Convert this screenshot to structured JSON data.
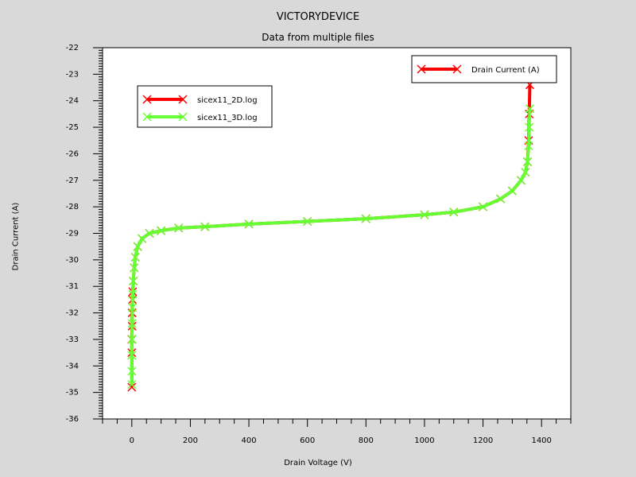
{
  "window": {
    "title": "VICTORYDEVICE",
    "subtitle": "Data from multiple files"
  },
  "colors": {
    "background": "#d9d9d9",
    "plot_area": "#ffffff",
    "series_2d": "#ff0000",
    "series_3d": "#66ff33",
    "axis": "#000000"
  },
  "chart_data": {
    "type": "line",
    "title": "VICTORYDEVICE",
    "subtitle": "Data from multiple files",
    "xlabel": "Drain Voltage (V)",
    "ylabel": "Drain Current (A)",
    "xlim": [
      -100,
      1500
    ],
    "ylim": [
      -36,
      -22
    ],
    "x_ticks": [
      0,
      200,
      400,
      600,
      800,
      1000,
      1200,
      1400
    ],
    "y_ticks": [
      -22,
      -23,
      -24,
      -25,
      -26,
      -27,
      -28,
      -29,
      -30,
      -31,
      -32,
      -33,
      -34,
      -35,
      -36
    ],
    "grid": false,
    "legends": [
      {
        "placement": "upper-left",
        "entries": [
          {
            "label": "sicex11_2D.log",
            "color": "#ff0000"
          },
          {
            "label": "sicex11_3D.log",
            "color": "#66ff33"
          }
        ]
      },
      {
        "placement": "top-right",
        "entries": [
          {
            "label": "Drain Current (A)",
            "color": "#ff0000"
          }
        ]
      }
    ],
    "series": [
      {
        "name": "sicex11_2D.log",
        "color": "#ff0000",
        "x": [
          0,
          0,
          0,
          1,
          1,
          2,
          3,
          5,
          8,
          12,
          20,
          35,
          60,
          100,
          160,
          250,
          400,
          600,
          800,
          1000,
          1100,
          1200,
          1260,
          1300,
          1330,
          1345,
          1352,
          1356,
          1358,
          1360
        ],
        "y": [
          -34.8,
          -33.5,
          -33.0,
          -32.5,
          -32.0,
          -31.5,
          -31.2,
          -30.8,
          -30.3,
          -29.9,
          -29.5,
          -29.2,
          -29.0,
          -28.9,
          -28.8,
          -28.75,
          -28.65,
          -28.55,
          -28.45,
          -28.3,
          -28.2,
          -28.0,
          -27.7,
          -27.4,
          -27.0,
          -26.7,
          -26.3,
          -25.5,
          -24.5,
          -23.4
        ]
      },
      {
        "name": "sicex11_3D.log",
        "color": "#66ff33",
        "x": [
          0,
          0,
          0,
          1,
          1,
          2,
          3,
          5,
          8,
          12,
          20,
          35,
          60,
          100,
          160,
          250,
          400,
          600,
          800,
          1000,
          1100,
          1200,
          1260,
          1300,
          1330,
          1345,
          1352,
          1356,
          1358,
          1360
        ],
        "y": [
          -34.7,
          -34.2,
          -33.6,
          -33.0,
          -32.4,
          -31.8,
          -31.3,
          -30.8,
          -30.3,
          -29.9,
          -29.5,
          -29.2,
          -29.0,
          -28.9,
          -28.8,
          -28.75,
          -28.65,
          -28.55,
          -28.45,
          -28.3,
          -28.2,
          -28.0,
          -27.7,
          -27.4,
          -27.0,
          -26.7,
          -26.3,
          -25.7,
          -25.0,
          -24.3
        ]
      }
    ]
  }
}
